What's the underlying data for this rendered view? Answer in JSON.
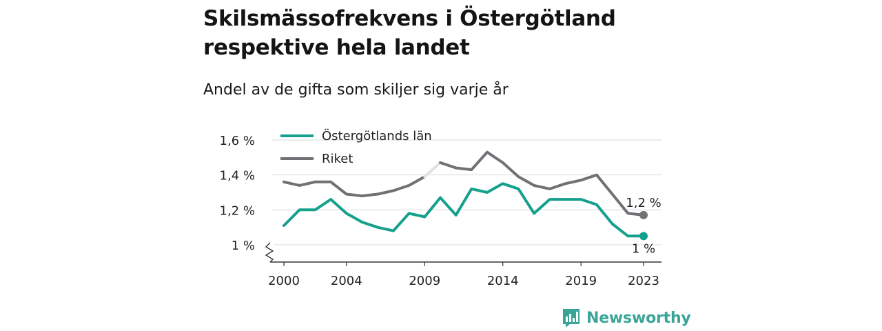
{
  "title": "Skilsmässofrekvens i Östergötland respektive hela landet",
  "subtitle": "Andel av de gifta som skiljer sig varje år",
  "brand": "Newsworthy",
  "chart_data": {
    "type": "line",
    "x": [
      2000,
      2001,
      2002,
      2003,
      2004,
      2005,
      2006,
      2007,
      2008,
      2009,
      2010,
      2011,
      2012,
      2013,
      2014,
      2015,
      2016,
      2017,
      2018,
      2019,
      2020,
      2021,
      2022,
      2023
    ],
    "xticks": [
      2000,
      2004,
      2009,
      2014,
      2019,
      2023
    ],
    "ylim": [
      1.0,
      1.6
    ],
    "yticks": [
      1.0,
      1.2,
      1.4,
      1.6
    ],
    "ytick_labels": [
      "1 %",
      "1,2 %",
      "1,4 %",
      "1,6 %"
    ],
    "axis_break": true,
    "grid": true,
    "legend_position": "top-left",
    "series": [
      {
        "name": "Östergötlands län",
        "color": "#15a08e",
        "values": [
          1.11,
          1.2,
          1.2,
          1.26,
          1.18,
          1.13,
          1.1,
          1.08,
          1.18,
          1.16,
          1.27,
          1.17,
          1.32,
          1.3,
          1.35,
          1.32,
          1.18,
          1.26,
          1.26,
          1.26,
          1.23,
          1.12,
          1.05,
          1.05
        ],
        "end_label": "1 %"
      },
      {
        "name": "Riket",
        "color": "#707075",
        "values": [
          1.36,
          1.34,
          1.36,
          1.36,
          1.29,
          1.28,
          1.29,
          1.31,
          1.34,
          1.39,
          1.47,
          1.44,
          1.43,
          1.53,
          1.47,
          1.39,
          1.34,
          1.32,
          1.35,
          1.37,
          1.4,
          1.29,
          1.18,
          1.17
        ],
        "end_label": "1,2 %",
        "highlight_segment": [
          2009,
          2010
        ],
        "highlight_color": "#e2e2e2"
      }
    ]
  }
}
